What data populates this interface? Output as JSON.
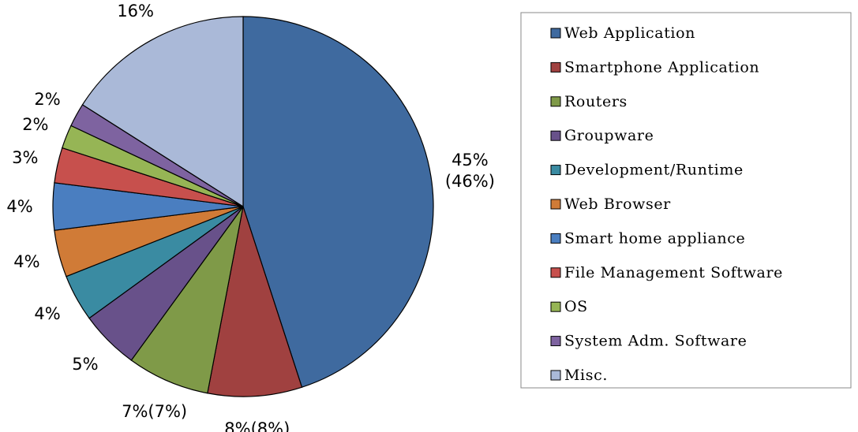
{
  "chart_data": {
    "type": "pie",
    "categories": [
      "Web Application",
      "Smartphone Application",
      "Routers",
      "Groupware",
      "Development/Runtime",
      "Web Browser",
      "Smart home appliance",
      "File Management Software",
      "OS",
      "System Adm. Software",
      "Misc."
    ],
    "values": [
      45,
      8,
      7,
      5,
      4,
      4,
      4,
      3,
      2,
      2,
      16
    ],
    "value_labels": [
      "45%\n(46%)",
      "8%(8%)",
      "7%(7%)",
      "5%",
      "4%",
      "4%",
      "4%",
      "3%",
      "2%",
      "2%",
      "16%"
    ],
    "colors": [
      "#3f6a9f",
      "#a04140",
      "#7f9a48",
      "#68518a",
      "#3a8ba2",
      "#d07b37",
      "#4a7ec0",
      "#c7504d",
      "#96b555",
      "#7e63a0",
      "#aab9d8"
    ],
    "legend": "right"
  }
}
